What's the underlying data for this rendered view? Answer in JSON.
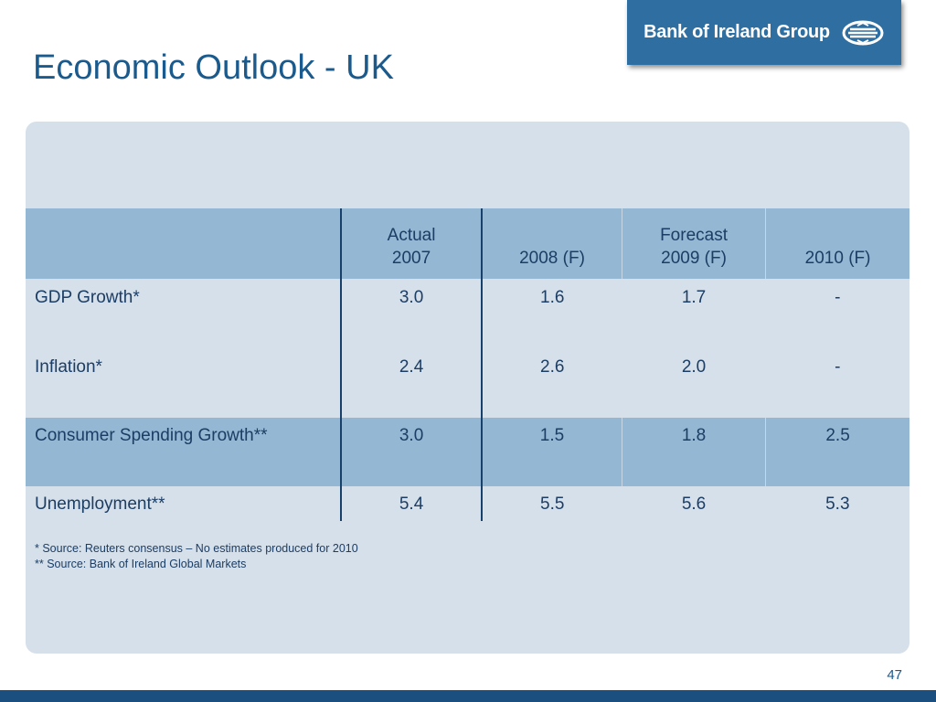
{
  "title": "Economic Outlook - UK",
  "logo": {
    "text": "Bank of Ireland Group",
    "icon": "bank-of-ireland-emblem"
  },
  "table": {
    "headers": [
      {
        "line1": "",
        "line2": ""
      },
      {
        "line1": "Actual",
        "line2": "2007"
      },
      {
        "line1": "",
        "line2": "2008 (F)"
      },
      {
        "line1": "Forecast",
        "line2": "2009 (F)"
      },
      {
        "line1": "",
        "line2": "2010 (F)"
      }
    ],
    "rows": [
      {
        "label": "GDP Growth*",
        "values": [
          "3.0",
          "1.6",
          "1.7",
          "-"
        ]
      },
      {
        "label": "Inflation*",
        "values": [
          "2.4",
          "2.6",
          "2.0",
          "-"
        ]
      },
      {
        "label": "Consumer Spending Growth**",
        "values": [
          "3.0",
          "1.5",
          "1.8",
          "2.5"
        ]
      },
      {
        "label": "Unemployment**",
        "values": [
          "5.4",
          "5.5",
          "5.6",
          "5.3"
        ]
      }
    ]
  },
  "footnotes": [
    "*  Source: Reuters consensus – No estimates produced for 2010",
    "** Source: Bank of Ireland Global Markets"
  ],
  "page_number": "47",
  "colors": {
    "title": "#1b5a8c",
    "panel": "#d5e0eb",
    "header_fill": "#94b7d3",
    "logo_bg": "#2e6ea1",
    "bottom_bar": "#1b4f7f"
  }
}
